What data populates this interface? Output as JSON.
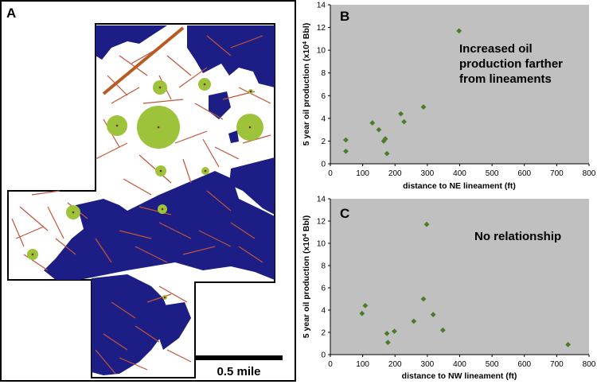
{
  "map": {
    "panel_label": "A",
    "scale_label": "0.5 mile"
  },
  "chart_data": [
    {
      "type": "scatter",
      "panel_label": "B",
      "annotation": [
        "Increased oil",
        "production farther",
        "from lineaments"
      ],
      "xlabel": "distance to NE lineament (ft)",
      "ylabel": "5 year oil production (x10",
      "ylabel_sup": "4",
      "ylabel_end": " Bbl)",
      "xlim": [
        0,
        800
      ],
      "ylim": [
        0,
        14
      ],
      "xticks": [
        0,
        100,
        200,
        300,
        400,
        500,
        600,
        700,
        800
      ],
      "yticks": [
        0,
        2,
        4,
        6,
        8,
        10,
        12,
        14
      ],
      "grid": false,
      "background": "#c0c0c0",
      "marker_color": "#4a7c2b",
      "points": [
        {
          "x": 48,
          "y": 2.1
        },
        {
          "x": 48,
          "y": 1.1
        },
        {
          "x": 130,
          "y": 3.6
        },
        {
          "x": 150,
          "y": 3.0
        },
        {
          "x": 165,
          "y": 2.0
        },
        {
          "x": 170,
          "y": 2.2
        },
        {
          "x": 175,
          "y": 0.9
        },
        {
          "x": 218,
          "y": 4.4
        },
        {
          "x": 228,
          "y": 3.7
        },
        {
          "x": 288,
          "y": 5.0
        },
        {
          "x": 398,
          "y": 11.7
        }
      ]
    },
    {
      "type": "scatter",
      "panel_label": "C",
      "annotation": [
        "No relationship"
      ],
      "xlabel": "distance to NW lineament (ft)",
      "ylabel": "5 year oil production (x10",
      "ylabel_sup": "4",
      "ylabel_end": " Bbl)",
      "xlim": [
        0,
        800
      ],
      "ylim": [
        0,
        14
      ],
      "xticks": [
        0,
        100,
        200,
        300,
        400,
        500,
        600,
        700,
        800
      ],
      "yticks": [
        0,
        2,
        4,
        6,
        8,
        10,
        12,
        14
      ],
      "grid": false,
      "background": "#c0c0c0",
      "marker_color": "#4a7c2b",
      "points": [
        {
          "x": 98,
          "y": 3.7
        },
        {
          "x": 108,
          "y": 4.4
        },
        {
          "x": 175,
          "y": 1.9
        },
        {
          "x": 178,
          "y": 1.1
        },
        {
          "x": 198,
          "y": 2.1
        },
        {
          "x": 258,
          "y": 3.0
        },
        {
          "x": 288,
          "y": 5.0
        },
        {
          "x": 298,
          "y": 11.7
        },
        {
          "x": 318,
          "y": 3.6
        },
        {
          "x": 348,
          "y": 2.2
        },
        {
          "x": 735,
          "y": 0.9
        }
      ]
    }
  ]
}
